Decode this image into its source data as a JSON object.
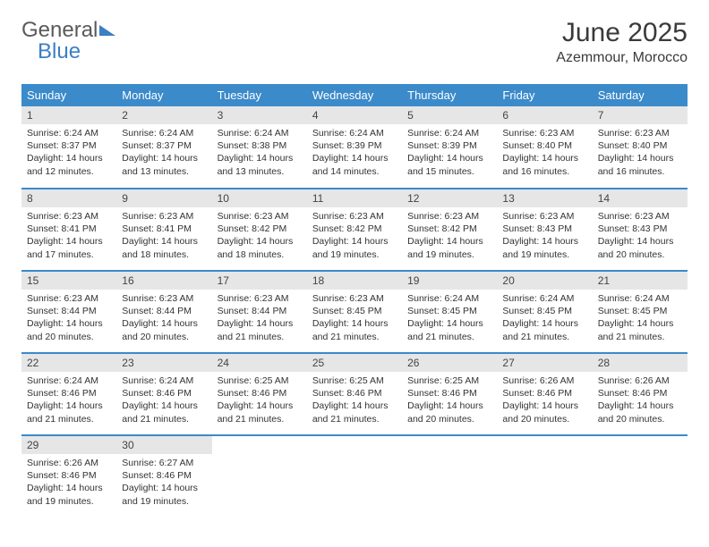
{
  "brand": {
    "part1": "General",
    "part2": "Blue"
  },
  "title": "June 2025",
  "location": "Azemmour, Morocco",
  "theme": {
    "header_bg": "#3b8aca",
    "header_fg": "#ffffff",
    "daynum_bg": "#e6e6e6",
    "row_border": "#3b8aca",
    "text_color": "#333333",
    "title_color": "#3a3a3a"
  },
  "weekdays": [
    "Sunday",
    "Monday",
    "Tuesday",
    "Wednesday",
    "Thursday",
    "Friday",
    "Saturday"
  ],
  "days": [
    {
      "n": 1,
      "sunrise": "6:24 AM",
      "sunset": "8:37 PM",
      "daylight": "14 hours and 12 minutes."
    },
    {
      "n": 2,
      "sunrise": "6:24 AM",
      "sunset": "8:37 PM",
      "daylight": "14 hours and 13 minutes."
    },
    {
      "n": 3,
      "sunrise": "6:24 AM",
      "sunset": "8:38 PM",
      "daylight": "14 hours and 13 minutes."
    },
    {
      "n": 4,
      "sunrise": "6:24 AM",
      "sunset": "8:39 PM",
      "daylight": "14 hours and 14 minutes."
    },
    {
      "n": 5,
      "sunrise": "6:24 AM",
      "sunset": "8:39 PM",
      "daylight": "14 hours and 15 minutes."
    },
    {
      "n": 6,
      "sunrise": "6:23 AM",
      "sunset": "8:40 PM",
      "daylight": "14 hours and 16 minutes."
    },
    {
      "n": 7,
      "sunrise": "6:23 AM",
      "sunset": "8:40 PM",
      "daylight": "14 hours and 16 minutes."
    },
    {
      "n": 8,
      "sunrise": "6:23 AM",
      "sunset": "8:41 PM",
      "daylight": "14 hours and 17 minutes."
    },
    {
      "n": 9,
      "sunrise": "6:23 AM",
      "sunset": "8:41 PM",
      "daylight": "14 hours and 18 minutes."
    },
    {
      "n": 10,
      "sunrise": "6:23 AM",
      "sunset": "8:42 PM",
      "daylight": "14 hours and 18 minutes."
    },
    {
      "n": 11,
      "sunrise": "6:23 AM",
      "sunset": "8:42 PM",
      "daylight": "14 hours and 19 minutes."
    },
    {
      "n": 12,
      "sunrise": "6:23 AM",
      "sunset": "8:42 PM",
      "daylight": "14 hours and 19 minutes."
    },
    {
      "n": 13,
      "sunrise": "6:23 AM",
      "sunset": "8:43 PM",
      "daylight": "14 hours and 19 minutes."
    },
    {
      "n": 14,
      "sunrise": "6:23 AM",
      "sunset": "8:43 PM",
      "daylight": "14 hours and 20 minutes."
    },
    {
      "n": 15,
      "sunrise": "6:23 AM",
      "sunset": "8:44 PM",
      "daylight": "14 hours and 20 minutes."
    },
    {
      "n": 16,
      "sunrise": "6:23 AM",
      "sunset": "8:44 PM",
      "daylight": "14 hours and 20 minutes."
    },
    {
      "n": 17,
      "sunrise": "6:23 AM",
      "sunset": "8:44 PM",
      "daylight": "14 hours and 21 minutes."
    },
    {
      "n": 18,
      "sunrise": "6:23 AM",
      "sunset": "8:45 PM",
      "daylight": "14 hours and 21 minutes."
    },
    {
      "n": 19,
      "sunrise": "6:24 AM",
      "sunset": "8:45 PM",
      "daylight": "14 hours and 21 minutes."
    },
    {
      "n": 20,
      "sunrise": "6:24 AM",
      "sunset": "8:45 PM",
      "daylight": "14 hours and 21 minutes."
    },
    {
      "n": 21,
      "sunrise": "6:24 AM",
      "sunset": "8:45 PM",
      "daylight": "14 hours and 21 minutes."
    },
    {
      "n": 22,
      "sunrise": "6:24 AM",
      "sunset": "8:46 PM",
      "daylight": "14 hours and 21 minutes."
    },
    {
      "n": 23,
      "sunrise": "6:24 AM",
      "sunset": "8:46 PM",
      "daylight": "14 hours and 21 minutes."
    },
    {
      "n": 24,
      "sunrise": "6:25 AM",
      "sunset": "8:46 PM",
      "daylight": "14 hours and 21 minutes."
    },
    {
      "n": 25,
      "sunrise": "6:25 AM",
      "sunset": "8:46 PM",
      "daylight": "14 hours and 21 minutes."
    },
    {
      "n": 26,
      "sunrise": "6:25 AM",
      "sunset": "8:46 PM",
      "daylight": "14 hours and 20 minutes."
    },
    {
      "n": 27,
      "sunrise": "6:26 AM",
      "sunset": "8:46 PM",
      "daylight": "14 hours and 20 minutes."
    },
    {
      "n": 28,
      "sunrise": "6:26 AM",
      "sunset": "8:46 PM",
      "daylight": "14 hours and 20 minutes."
    },
    {
      "n": 29,
      "sunrise": "6:26 AM",
      "sunset": "8:46 PM",
      "daylight": "14 hours and 19 minutes."
    },
    {
      "n": 30,
      "sunrise": "6:27 AM",
      "sunset": "8:46 PM",
      "daylight": "14 hours and 19 minutes."
    }
  ],
  "labels": {
    "sunrise": "Sunrise:",
    "sunset": "Sunset:",
    "daylight": "Daylight:"
  }
}
